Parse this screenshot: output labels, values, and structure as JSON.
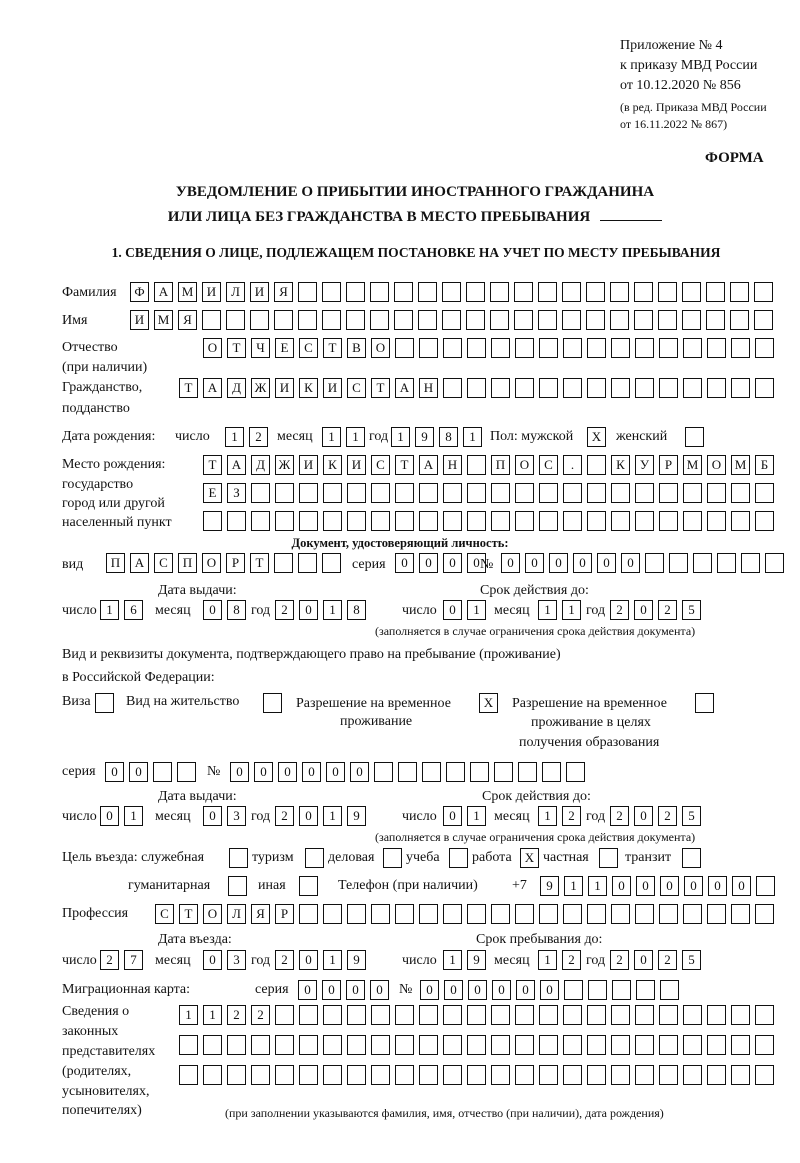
{
  "header": {
    "appendix": "Приложение № 4",
    "order": "к приказу МВД России",
    "order_date": "от 10.12.2020 № 856",
    "edition1": "(в ред. Приказа МВД России",
    "edition2": "от 16.11.2022 № 867)",
    "form_label": "ФОРМА",
    "title1": "УВЕДОМЛЕНИЕ О ПРИБЫТИИ ИНОСТРАННОГО ГРАЖДАНИНА",
    "title2": "ИЛИ ЛИЦА БЕЗ ГРАЖДАНСТВА В МЕСТО ПРЕБЫВАНИЯ",
    "section1": "1. СВЕДЕНИЯ О ЛИЦЕ, ПОДЛЕЖАЩЕМ ПОСТАНОВКЕ НА УЧЕТ ПО МЕСТУ ПРЕБЫВАНИЯ"
  },
  "labels": {
    "surname": "Фамилия",
    "name": "Имя",
    "patronymic1": "Отчество",
    "patronymic2": "(при наличии)",
    "citizenship1": "Гражданство,",
    "citizenship2": "подданство",
    "birth_date": "Дата рождения:",
    "day": "число",
    "month": "месяц",
    "year": "год",
    "sex": "Пол: мужской",
    "female": "женский",
    "birthplace1": "Место рождения:",
    "birthplace2": "государство",
    "birthplace3": "город или другой",
    "birthplace4": "населенный пункт",
    "id_doc": "Документ, удостоверяющий личность:",
    "kind": "вид",
    "series": "серия",
    "number": "№",
    "issue_date": "Дата выдачи:",
    "valid_until": "Срок действия до:",
    "validity_note": "(заполняется в случае ограничения срока действия документа)",
    "right_doc1": "Вид и реквизиты документа, подтверждающего право на пребывание (проживание)",
    "right_doc2": "в Российской Федерации:",
    "visa": "Виза",
    "residence_permit": "Вид на жительство",
    "temp_permit1": "Разрешение на временное",
    "temp_permit2": "проживание",
    "edu_permit1": "Разрешение на временное",
    "edu_permit2": "проживание в целях",
    "edu_permit3": "получения образования",
    "purpose": "Цель въезда: служебная",
    "tourism": "туризм",
    "business": "деловая",
    "study": "учеба",
    "work": "работа",
    "private": "частная",
    "transit": "транзит",
    "humanitarian": "гуманитарная",
    "other": "иная",
    "phone": "Телефон (при наличии)",
    "phone_prefix": "+7",
    "profession": "Профессия",
    "entry_date": "Дата въезда:",
    "stay_until": "Срок пребывания до:",
    "migration_card": "Миграционная карта:",
    "reps1": "Сведения о",
    "reps2": "законных",
    "reps3": "представителях",
    "reps4": "(родителях,",
    "reps5": "усыновителях,",
    "reps6": "попечителях)",
    "reps_note": "(при заполнении указываются фамилия, имя, отчество (при наличии), дата рождения)"
  },
  "fields": {
    "surname": "ФАМИЛИЯ",
    "name": "ИМЯ",
    "patronymic": "ОТЧЕСТВО",
    "citizenship": "ТАДЖИКИСТАН",
    "birth_day": "12",
    "birth_month": "11",
    "birth_year": "1981",
    "sex_male": "X",
    "sex_female": "",
    "birthplace1": "ТАДЖИКИСТАН ПОС. КУРМОМБ",
    "birthplace2": "ЕЗ",
    "birthplace3": "",
    "id_kind": "ПАСПОРТ",
    "id_series": "0000",
    "id_number": "000000",
    "id_issue_day": "16",
    "id_issue_month": "08",
    "id_issue_year": "2018",
    "id_valid_day": "01",
    "id_valid_month": "11",
    "id_valid_year": "2025",
    "visa": "",
    "residence_permit": "",
    "temp_permit": "X",
    "edu_permit": "",
    "rd_series": "00",
    "rd_number": "000000",
    "rd_issue_day": "01",
    "rd_issue_month": "03",
    "rd_issue_year": "2019",
    "rd_valid_day": "01",
    "rd_valid_month": "12",
    "rd_valid_year": "2025",
    "purpose_service": "",
    "purpose_tourism": "",
    "purpose_business": "",
    "purpose_study": "",
    "purpose_work": "X",
    "purpose_private": "",
    "purpose_transit": "",
    "purpose_humanitarian": "",
    "purpose_other": "",
    "phone": "911000000",
    "profession": "СТОЛЯР",
    "entry_day": "27",
    "entry_month": "03",
    "entry_year": "2019",
    "stay_day": "19",
    "stay_month": "12",
    "stay_year": "2025",
    "mc_series": "0000",
    "mc_number": "000000",
    "reps1": "1122",
    "reps2": "",
    "reps3": ""
  }
}
